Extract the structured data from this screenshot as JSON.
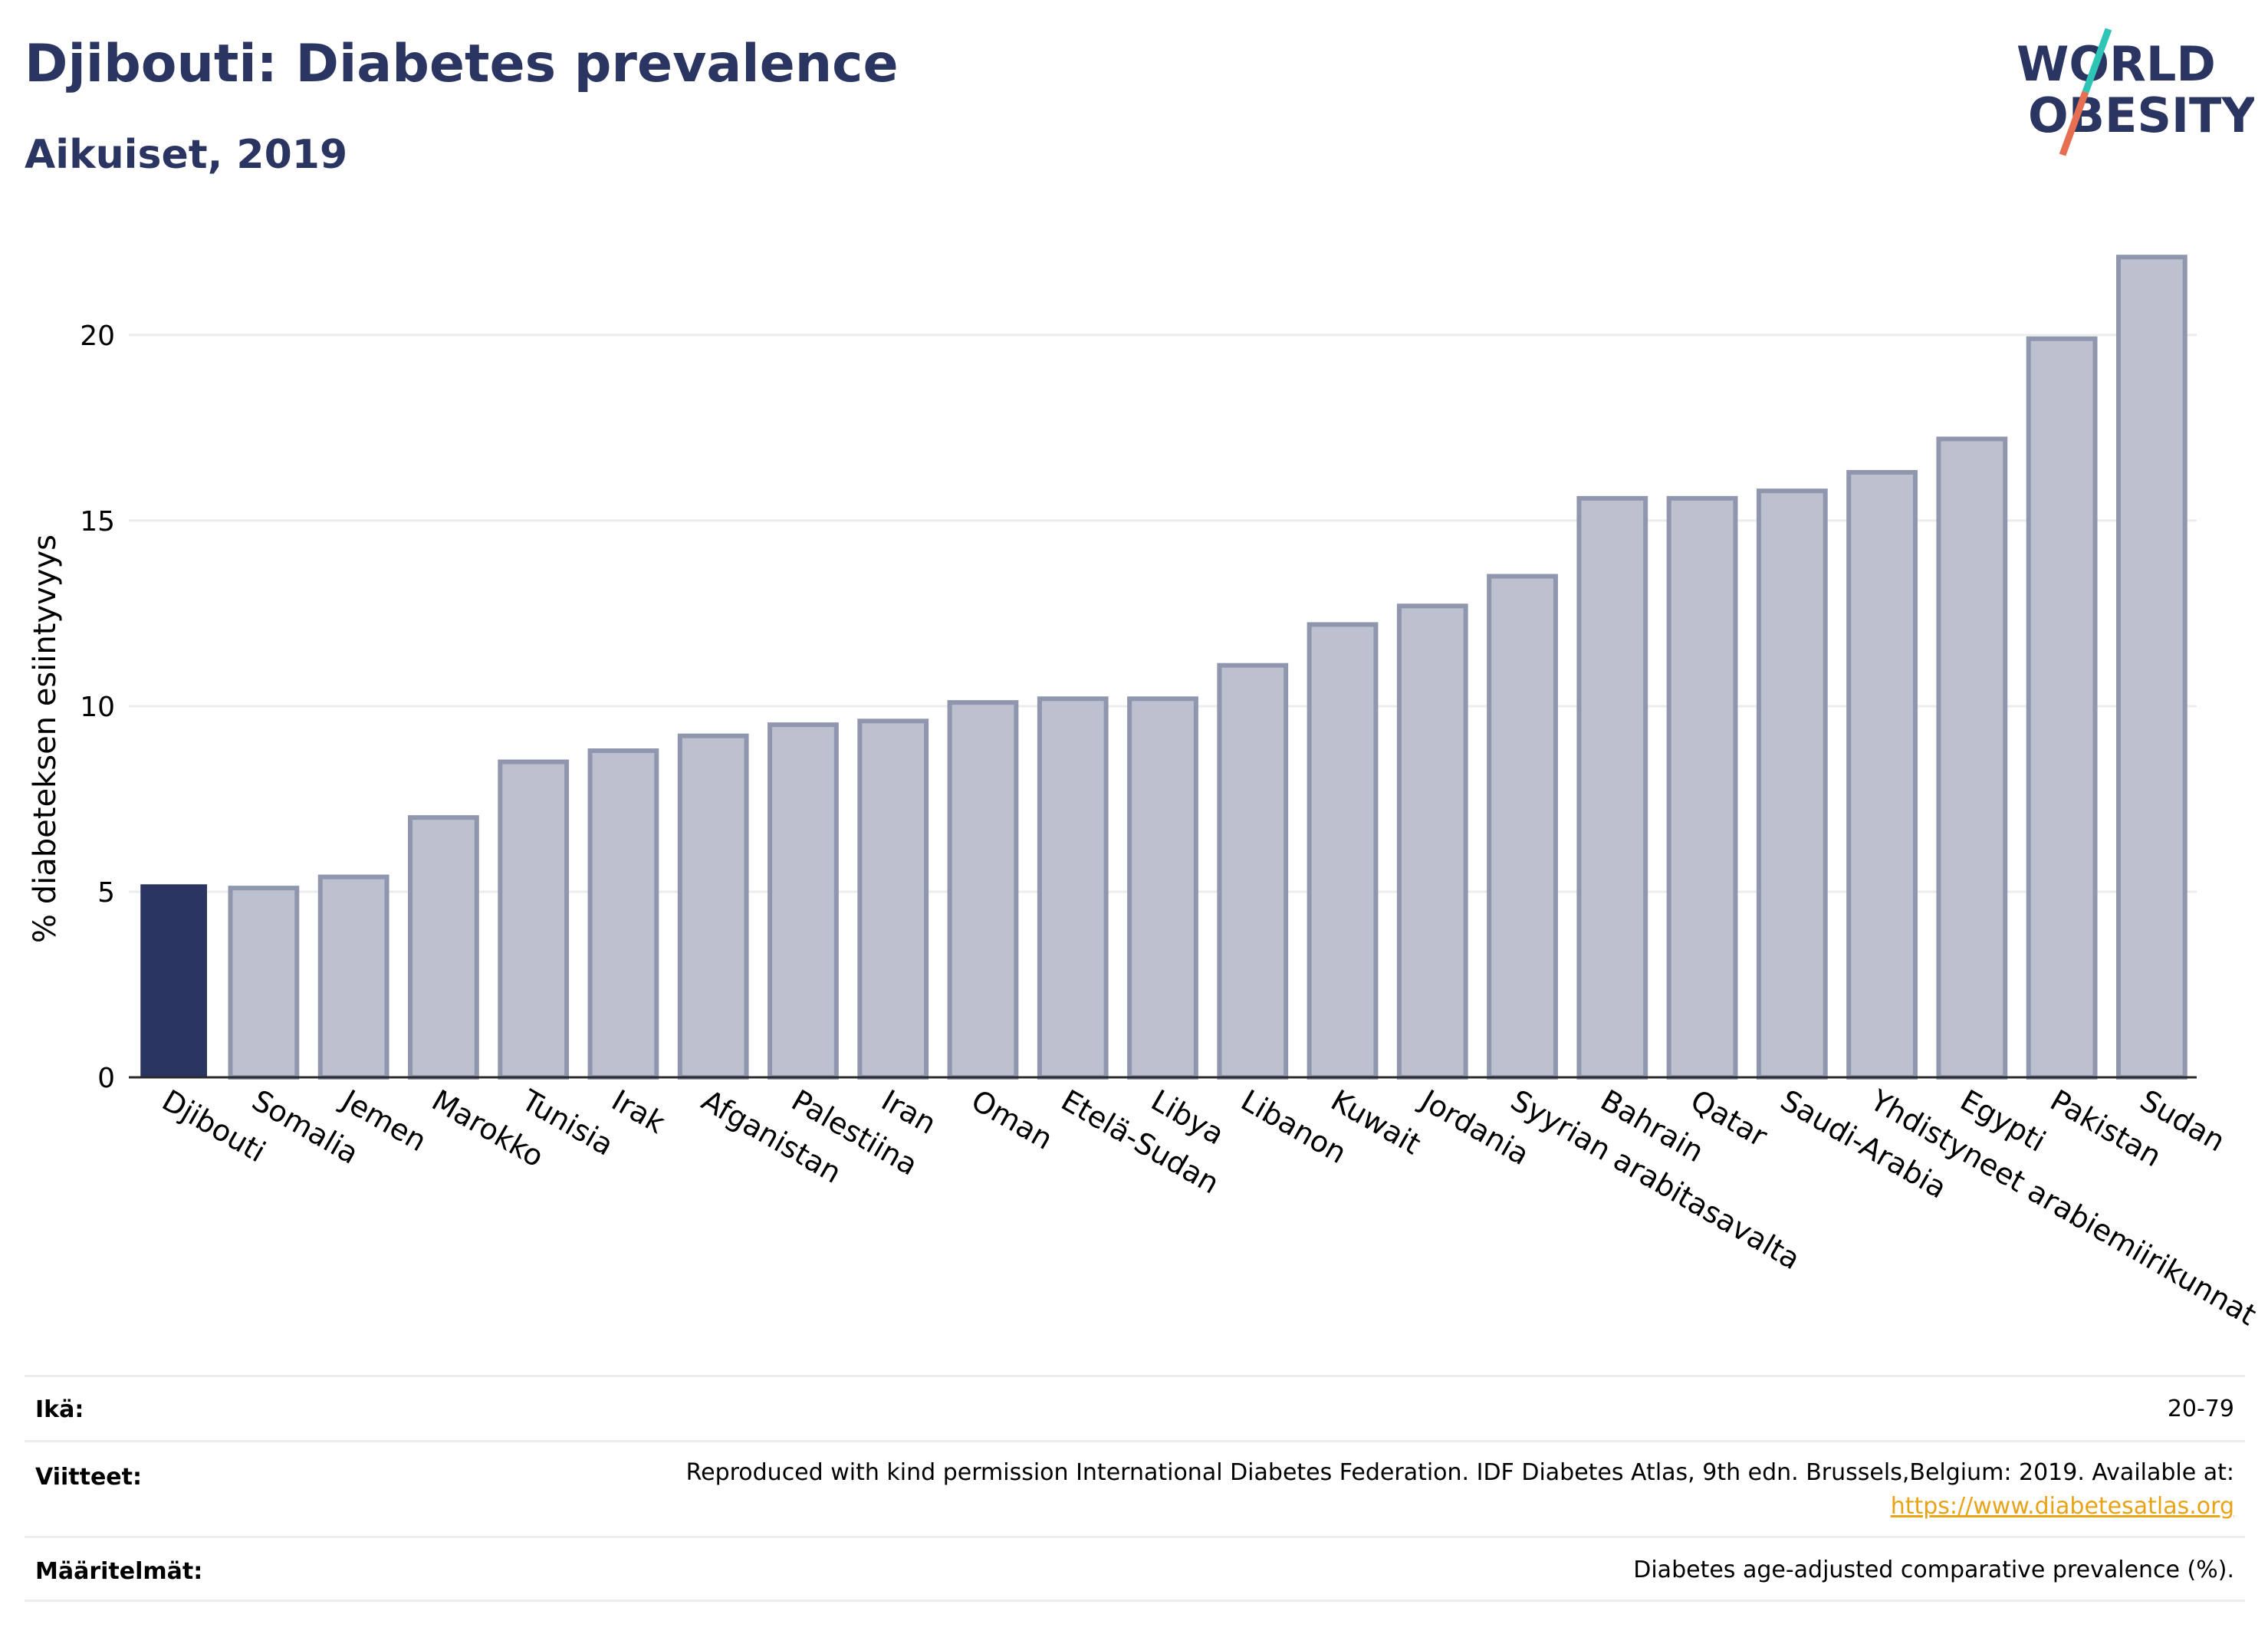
{
  "header": {
    "title": "Djibouti: Diabetes prevalence",
    "subtitle": "Aikuiset, 2019"
  },
  "logo": {
    "line1": "WORLD",
    "line2": "OBESITY"
  },
  "colors": {
    "highlight": "#2b3561",
    "bar_fill": "#bcc0cf",
    "bar_stroke": "#8f96ae",
    "title": "#2b3561",
    "logo_slash_top": "#2ec4b6",
    "logo_slash_bottom": "#e76f51"
  },
  "chart_data": {
    "type": "bar",
    "categories": [
      "Djibouti",
      "Somalia",
      "Jemen",
      "Marokko",
      "Tunisia",
      "Irak",
      "Afganistan",
      "Palestiina",
      "Iran",
      "Oman",
      "Etelä-Sudan",
      "Libya",
      "Libanon",
      "Kuwait",
      "Jordania",
      "Syyrian arabitasavalta",
      "Bahrain",
      "Qatar",
      "Saudi-Arabia",
      "Yhdistyneet arabiemiirikunnat",
      "Egypti",
      "Pakistan",
      "Sudan"
    ],
    "values": [
      5.2,
      5.1,
      5.4,
      7.0,
      8.5,
      8.8,
      9.2,
      9.5,
      9.6,
      10.1,
      10.2,
      10.2,
      11.1,
      12.2,
      12.7,
      13.5,
      15.6,
      15.6,
      15.8,
      16.3,
      17.2,
      19.9,
      22.1
    ],
    "highlight": "Djibouti",
    "ylabel": "% diabeteksen esiintyvyys",
    "xlabel": "",
    "ylim": [
      0,
      23.2
    ],
    "yticks": [
      "0",
      "5",
      "10",
      "15",
      "20"
    ],
    "ytick_values": [
      0,
      5,
      10,
      15,
      20
    ],
    "grid": true
  },
  "info": {
    "age_label": "Ikä:",
    "age_value": "20-79",
    "refs_label": "Viitteet:",
    "refs_value": "Reproduced with kind permission International Diabetes Federation. IDF Diabetes Atlas, 9th edn. Brussels,Belgium: 2019. Available at:",
    "refs_link": "https://www.diabetesatlas.org",
    "defs_label": "Määritelmät:",
    "defs_value": "Diabetes age-adjusted comparative prevalence (%)."
  }
}
